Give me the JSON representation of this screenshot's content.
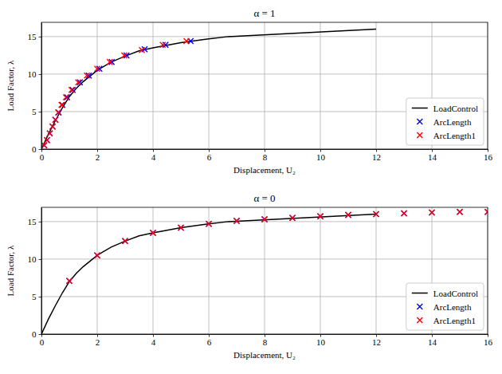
{
  "chart_data": [
    {
      "type": "line",
      "title": "α = 1",
      "x_label": "Displacement, U₂",
      "y_label": "Load Factor, λ",
      "xlim": [
        0,
        16
      ],
      "xticks": [
        0,
        2,
        4,
        6,
        8,
        10,
        12,
        14,
        16
      ],
      "ylim": [
        0,
        16.9
      ],
      "yticks": [
        0,
        5,
        10,
        15
      ],
      "grid": true,
      "legend": "lower right",
      "series": [
        {
          "name": "LoadControl",
          "type": "line",
          "color": "#000000",
          "line_style": "solid",
          "x": [
            0,
            0.25,
            0.5,
            0.75,
            1,
            1.25,
            1.5,
            2,
            2.5,
            3,
            3.5,
            4,
            5,
            6,
            6.7,
            12
          ],
          "values": [
            0,
            2.0,
            3.8,
            5.5,
            7.0,
            8.1,
            9.0,
            10.5,
            11.6,
            12.4,
            13.1,
            13.5,
            14.2,
            14.7,
            15.0,
            16.0
          ]
        },
        {
          "name": "ArcLength",
          "type": "scatter",
          "color": "#0000ff",
          "marker": "x",
          "x": [
            0.1,
            0.2,
            0.3,
            0.4,
            0.5,
            0.62,
            0.75,
            0.92,
            1.12,
            1.38,
            1.7,
            2.08,
            2.52,
            3.05,
            3.7,
            4.45,
            5.35
          ],
          "values": [
            0.5,
            1.2,
            2.1,
            3.0,
            3.9,
            4.9,
            5.9,
            6.9,
            7.9,
            8.9,
            9.8,
            10.7,
            11.6,
            12.5,
            13.3,
            13.9,
            14.4
          ]
        },
        {
          "name": "ArcLength1",
          "type": "scatter",
          "color": "#ff0000",
          "marker": "x",
          "x": [
            0.1,
            0.2,
            0.3,
            0.4,
            0.5,
            0.6,
            0.72,
            0.88,
            1.08,
            1.32,
            1.63,
            2.0,
            2.45,
            2.97,
            3.6,
            4.35,
            5.2
          ],
          "values": [
            0.5,
            1.2,
            2.1,
            3.0,
            3.9,
            4.9,
            5.9,
            6.9,
            7.9,
            8.9,
            9.8,
            10.7,
            11.6,
            12.5,
            13.2,
            13.9,
            14.4
          ]
        }
      ]
    },
    {
      "type": "line",
      "title": "α = 0",
      "x_label": "Displacement, U₂",
      "y_label": "Load Factor, λ",
      "xlim": [
        0,
        16
      ],
      "xticks": [
        0,
        2,
        4,
        6,
        8,
        10,
        12,
        14,
        16
      ],
      "ylim": [
        0,
        16.9
      ],
      "yticks": [
        0,
        5,
        10,
        15
      ],
      "grid": true,
      "legend": "lower right",
      "series": [
        {
          "name": "LoadControl",
          "type": "line",
          "color": "#000000",
          "line_style": "solid",
          "x": [
            0,
            0.25,
            0.5,
            0.75,
            1,
            1.25,
            1.5,
            2,
            2.5,
            3,
            3.5,
            4,
            5,
            6,
            6.7,
            12
          ],
          "values": [
            0,
            2.0,
            3.8,
            5.5,
            7.0,
            8.1,
            9.0,
            10.5,
            11.6,
            12.4,
            13.1,
            13.5,
            14.2,
            14.7,
            15.0,
            16.0
          ]
        },
        {
          "name": "ArcLength",
          "type": "scatter",
          "color": "#0000ff",
          "marker": "x",
          "x": [
            1,
            2,
            3,
            4,
            5,
            6,
            7,
            8,
            9,
            10,
            11,
            12,
            13,
            14,
            15,
            16
          ],
          "values": [
            7.1,
            10.5,
            12.4,
            13.5,
            14.2,
            14.7,
            15.1,
            15.3,
            15.5,
            15.7,
            15.9,
            16.0,
            16.1,
            16.2,
            16.3,
            16.3
          ]
        },
        {
          "name": "ArcLength1",
          "type": "scatter",
          "color": "#ff0000",
          "marker": "x",
          "x": [
            1,
            2,
            3,
            4,
            5,
            6,
            7,
            8,
            9,
            10,
            11,
            12,
            13,
            14,
            15,
            16
          ],
          "values": [
            7.1,
            10.5,
            12.4,
            13.5,
            14.2,
            14.7,
            15.1,
            15.3,
            15.5,
            15.7,
            15.9,
            16.0,
            16.1,
            16.2,
            16.3,
            16.3
          ]
        }
      ]
    }
  ]
}
